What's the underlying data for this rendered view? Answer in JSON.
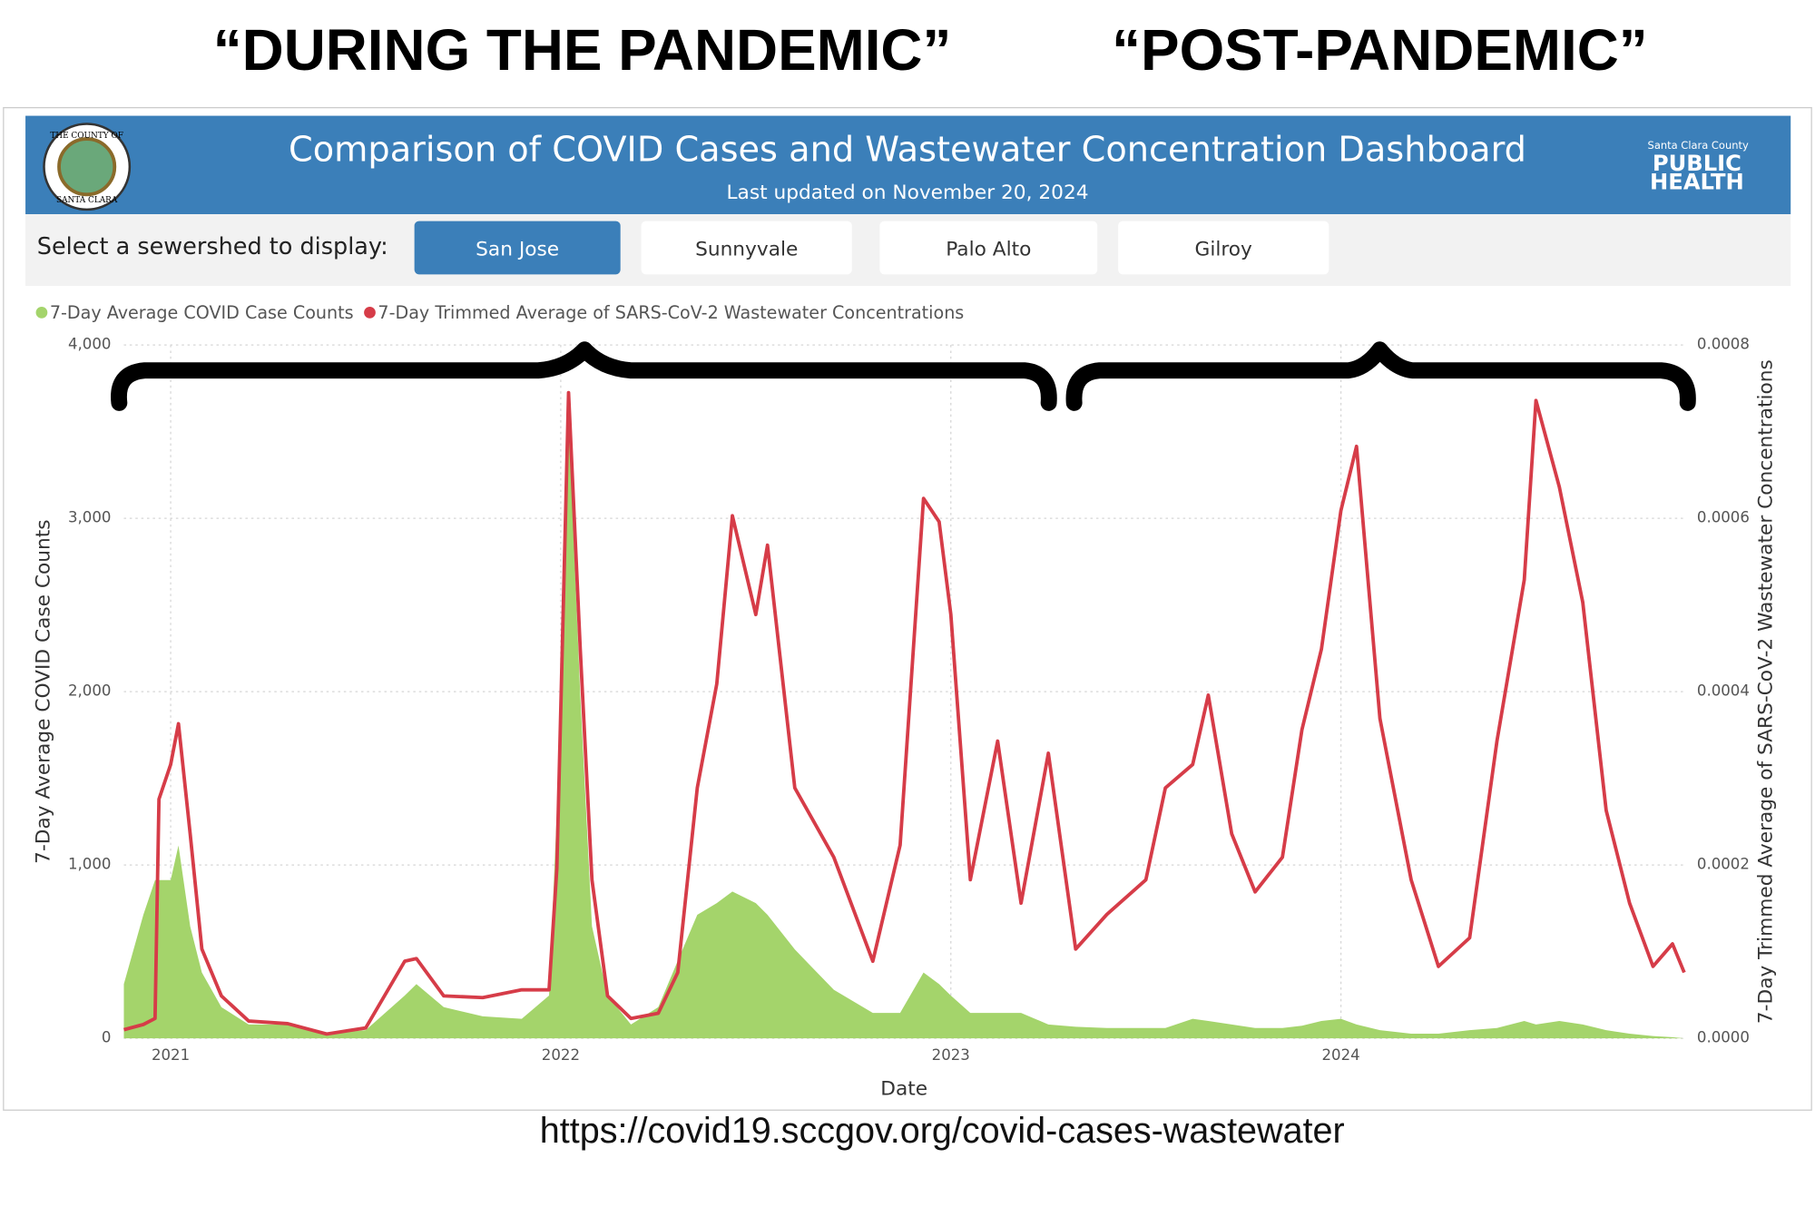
{
  "annotations": {
    "left": "“DURING THE PANDEMIC”",
    "right": "“POST-PANDEMIC”",
    "url": "https://covid19.sccgov.org/covid-cases-wastewater"
  },
  "dashboard": {
    "title": "Comparison of COVID Cases and Wastewater Concentration Dashboard",
    "subtitle": "Last updated on November 20, 2024",
    "seal_top": "THE COUNTY OF",
    "seal_bottom": "SANTA CLARA",
    "logo_county": "Santa Clara County",
    "logo_public": "PUBLIC",
    "logo_health": "HEALTH",
    "selector_label": "Select a sewershed to display:",
    "sewersheds": [
      "San Jose",
      "Sunnyvale",
      "Palo Alto",
      "Gilroy"
    ],
    "selected": 0
  },
  "chart_data": {
    "type": "combo",
    "xlabel": "Date",
    "ylabel": "7-Day Average COVID Case Counts",
    "y2label": "7-Day Trimmed Average of SARS-CoV-2 Wastewater Concentrations",
    "x": [
      2020.88,
      2020.93,
      2020.96,
      2020.97,
      2021.0,
      2021.02,
      2021.05,
      2021.08,
      2021.13,
      2021.2,
      2021.3,
      2021.4,
      2021.5,
      2021.6,
      2021.63,
      2021.7,
      2021.8,
      2021.9,
      2021.97,
      2021.99,
      2022.02,
      2022.05,
      2022.08,
      2022.12,
      2022.18,
      2022.25,
      2022.3,
      2022.35,
      2022.4,
      2022.44,
      2022.5,
      2022.53,
      2022.6,
      2022.7,
      2022.8,
      2022.87,
      2022.93,
      2022.97,
      2023.0,
      2023.05,
      2023.12,
      2023.18,
      2023.25,
      2023.32,
      2023.4,
      2023.5,
      2023.55,
      2023.62,
      2023.66,
      2023.72,
      2023.78,
      2023.85,
      2023.9,
      2023.95,
      2024.0,
      2024.04,
      2024.1,
      2024.18,
      2024.25,
      2024.33,
      2024.4,
      2024.47,
      2024.5,
      2024.56,
      2024.62,
      2024.68,
      2024.74,
      2024.8,
      2024.85,
      2024.88
    ],
    "series": [
      {
        "name": "7-Day Average COVID Case Counts",
        "type": "area",
        "color": "#a4d46b",
        "values": [
          313,
          713,
          913,
          913,
          913,
          1113,
          647,
          380,
          180,
          80,
          80,
          27,
          47,
          247,
          313,
          180,
          127,
          113,
          247,
          1313,
          3580,
          1980,
          647,
          247,
          80,
          180,
          447,
          713,
          780,
          847,
          780,
          713,
          513,
          280,
          147,
          147,
          380,
          313,
          247,
          147,
          147,
          147,
          80,
          67,
          60,
          60,
          60,
          113,
          100,
          80,
          60,
          60,
          73,
          100,
          113,
          80,
          47,
          27,
          27,
          47,
          60,
          100,
          80,
          100,
          80,
          47,
          27,
          13,
          7,
          0
        ]
      },
      {
        "name": "7-Day Trimmed Average of SARS-CoV-2 Wastewater Concentrations",
        "type": "line",
        "color": "#d63c48",
        "axis": "y2",
        "values": [
          1e-05,
          1.6e-05,
          2.3e-05,
          0.000276,
          0.000316,
          0.000363,
          0.000236,
          0.000103,
          4.9e-05,
          2e-05,
          1.7e-05,
          5e-06,
          1.2e-05,
          8.9e-05,
          9.2e-05,
          4.9e-05,
          4.7e-05,
          5.6e-05,
          5.6e-05,
          0.000196,
          0.000745,
          0.000449,
          0.000183,
          4.9e-05,
          2.3e-05,
          2.9e-05,
          7.6e-05,
          0.000289,
          0.000409,
          0.000603,
          0.000489,
          0.000569,
          0.000289,
          0.000209,
          8.9e-05,
          0.000223,
          0.000623,
          0.000596,
          0.000489,
          0.000183,
          0.000343,
          0.000156,
          0.000329,
          0.000103,
          0.000143,
          0.000183,
          0.000289,
          0.000316,
          0.000396,
          0.000236,
          0.000169,
          0.000209,
          0.000356,
          0.000449,
          0.000609,
          0.000683,
          0.000369,
          0.000183,
          8.3e-05,
          0.000116,
          0.000343,
          0.000529,
          0.000736,
          0.000636,
          0.000503,
          0.000263,
          0.000156,
          8.3e-05,
          0.000109,
          7.6e-05
        ]
      }
    ],
    "xlim": [
      2020.88,
      2024.88
    ],
    "xticks": [
      2021,
      2022,
      2023,
      2024
    ],
    "ylim": [
      0,
      4000
    ],
    "yticks": [
      0,
      {
        "value": 1000,
        "label": "1,000"
      },
      {
        "value": 2000,
        "label": "2,000"
      },
      {
        "value": 3000,
        "label": "3,000"
      },
      {
        "value": 4000,
        "label": "4,000"
      }
    ],
    "y2lim": [
      0,
      0.0008
    ],
    "y2ticks": [
      {
        "value": 0,
        "label": "0.0000"
      },
      0.0002,
      0.0004,
      0.0006,
      0.0008
    ],
    "grid": true,
    "legend": "top-left"
  }
}
